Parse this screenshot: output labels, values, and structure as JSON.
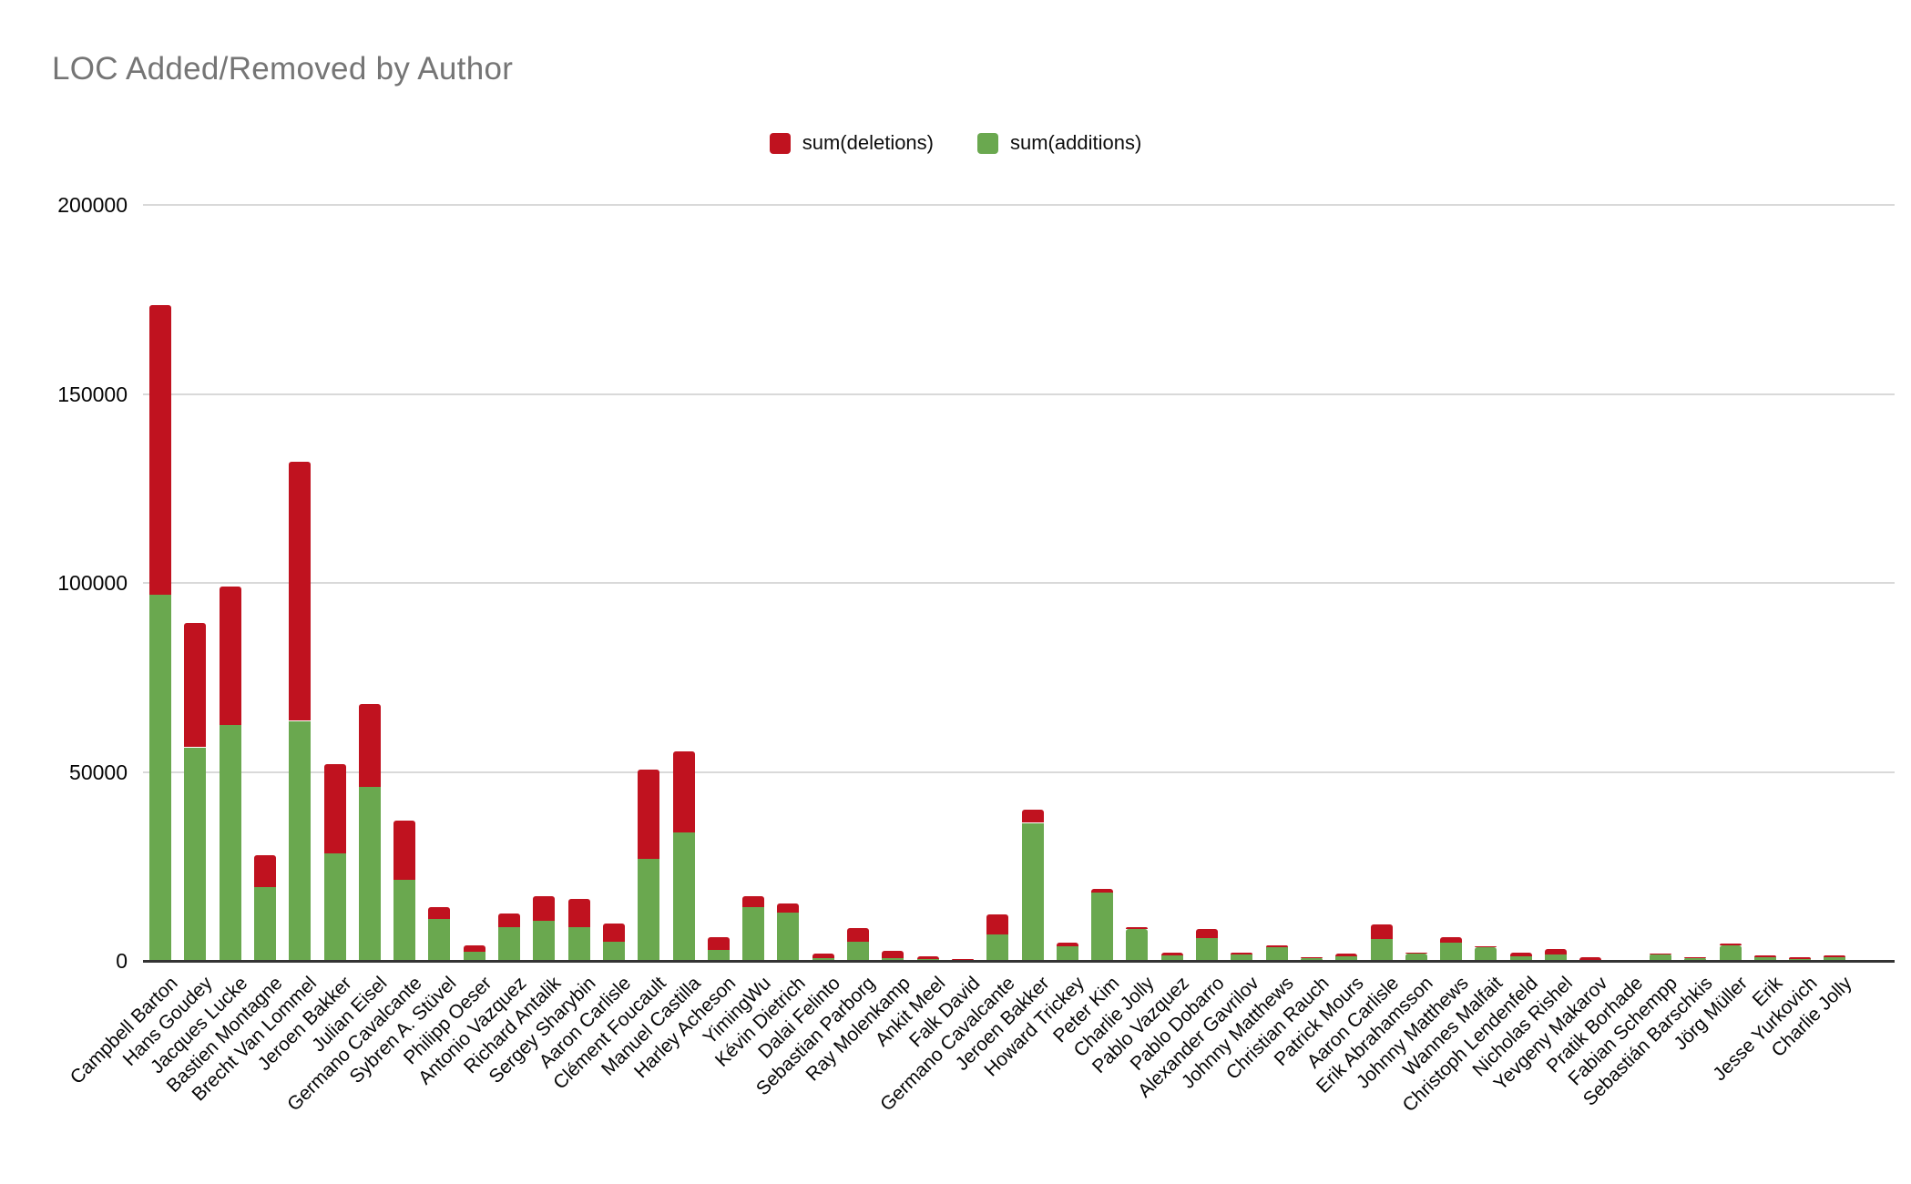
{
  "title": "LOC Added/Removed by Author",
  "legend": [
    {
      "label": "sum(deletions)",
      "series": "deletions",
      "color": "#c0121f"
    },
    {
      "label": "sum(additions)",
      "series": "additions",
      "color": "#6aa84f"
    }
  ],
  "colors": {
    "deletions": "#c0121f",
    "additions": "#6aa84f",
    "title_text": "#757575",
    "gridline": "#d9d9d9",
    "axis_line": "#333333",
    "tick_text": "#050505"
  },
  "y_axis": {
    "ticks": [
      0,
      50000,
      100000,
      150000,
      200000
    ],
    "max": 200000
  },
  "chart_data": {
    "type": "bar",
    "stacked": true,
    "title": "LOC Added/Removed by Author",
    "xlabel": "",
    "ylabel": "",
    "ylim": [
      0,
      200000
    ],
    "grid": true,
    "legend_position": "top-center",
    "categories": [
      "Campbell Barton",
      "Hans Goudey",
      "Jacques Lucke",
      "Bastien Montagne",
      "Brecht Van Lommel",
      "Jeroen Bakker",
      "Julian Eisel",
      "Germano Cavalcante",
      "Sybren A. Stüvel",
      "Philipp Oeser",
      "Antonio Vazquez",
      "Richard Antalik",
      "Sergey Sharybin",
      "Aaron Carlisle",
      "Clément Foucault",
      "Manuel Castilla",
      "Harley Acheson",
      "YimingWu",
      "Kévin Dietrich",
      "Dalai Felinto",
      "Sebastian Parborg",
      "Ray Molenkamp",
      "Ankit Meel",
      "Falk David",
      "Germano Cavalcante",
      "Jeroen Bakker",
      "Howard Trickey",
      "Peter Kim",
      "Charlie Jolly",
      "Pablo Vazquez",
      "Pablo Dobarro",
      "Alexander Gavrilov",
      "Johnny Matthews",
      "Christian Rauch",
      "Patrick Mours",
      "Aaron Carlisle",
      "Erik Abrahamsson",
      "Johnny Matthews",
      "Wannes Malfait",
      "Christoph Lendenfeld",
      "Nicholas Rishel",
      "Yevgeny Makarov",
      "Pratik Borhade",
      "Fabian Schempp",
      "Sebastián Barschkis",
      "Jörg Müller",
      "Erik",
      "Jesse Yurkovich",
      "Charlie Jolly"
    ],
    "series": [
      {
        "name": "sum(additions)",
        "color": "#6aa84f",
        "values": [
          97000,
          56500,
          62500,
          19500,
          63500,
          28500,
          46000,
          21500,
          11000,
          2500,
          9000,
          10500,
          9000,
          5000,
          27000,
          34000,
          2800,
          14200,
          12800,
          700,
          5000,
          800,
          400,
          500,
          7100,
          36500,
          3800,
          18000,
          8500,
          1500,
          6000,
          1600,
          3700,
          900,
          1300,
          5700,
          2000,
          4900,
          3700,
          1300,
          1600,
          300,
          100,
          1900,
          900,
          4200,
          900,
          400,
          900
        ]
      },
      {
        "name": "sum(deletions)",
        "color": "#c0121f",
        "values": [
          76500,
          33000,
          36500,
          8500,
          68500,
          23500,
          22000,
          15500,
          3300,
          1500,
          3500,
          6500,
          7500,
          4800,
          23500,
          21500,
          3500,
          3000,
          2500,
          1200,
          3700,
          1800,
          700,
          100,
          5300,
          3400,
          1100,
          1100,
          400,
          700,
          2500,
          700,
          500,
          100,
          600,
          3900,
          100,
          1400,
          100,
          900,
          1600,
          700,
          100,
          100,
          100,
          400,
          500,
          500,
          500
        ]
      }
    ]
  }
}
